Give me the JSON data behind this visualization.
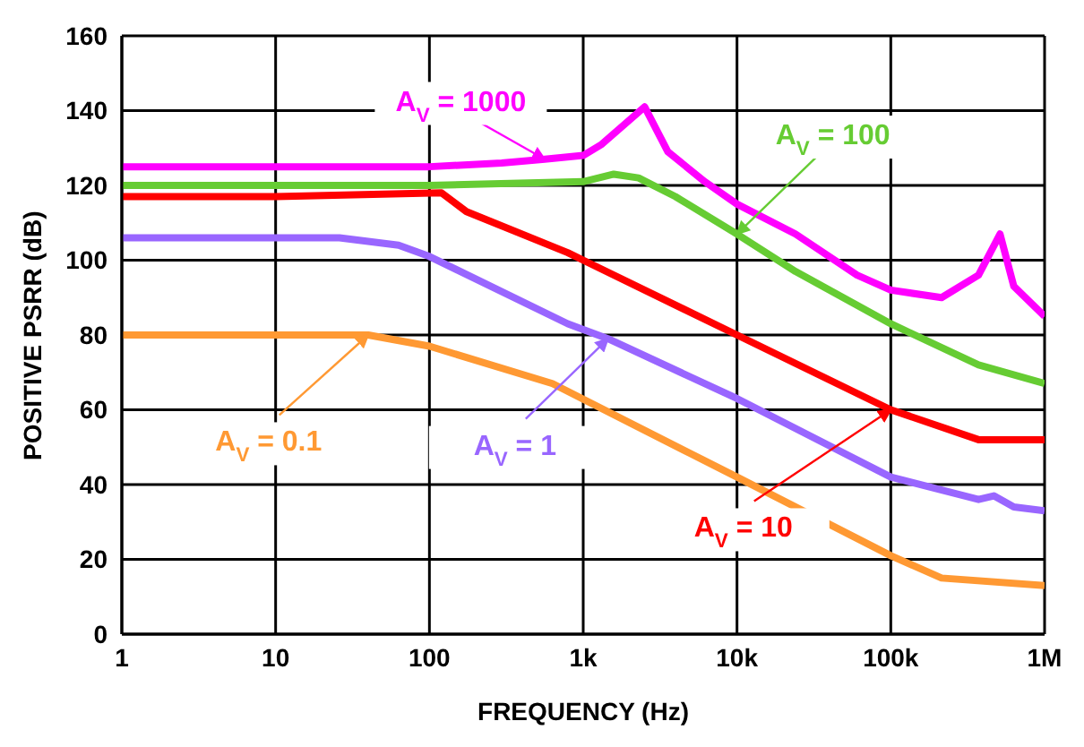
{
  "chart_data": {
    "type": "line",
    "xlabel": "FREQUENCY (Hz)",
    "ylabel": "POSITIVE PSRR (dB)",
    "log": "x",
    "grid": true,
    "marker": "none",
    "line_style": "solid",
    "xlim": [
      1,
      1000000
    ],
    "xticks": [
      1,
      10,
      100,
      {
        "value": 1000,
        "label": "1k"
      },
      {
        "value": 10000,
        "label": "10k"
      },
      {
        "value": 100000,
        "label": "100k"
      },
      {
        "value": 1000000,
        "label": "1M"
      }
    ],
    "ylim": [
      0,
      160
    ],
    "yticks": [
      0,
      20,
      40,
      60,
      80,
      100,
      120,
      140,
      160
    ],
    "series": [
      {
        "name": "A$_{V}$ = 1000",
        "color": "#ff00ff",
        "x": [
          1,
          10,
          100,
          295,
          562,
          1000,
          1320,
          2510,
          3550,
          6170,
          10000,
          24000,
          60300,
          100000,
          214000,
          372000,
          513000,
          631000,
          1000000
        ],
        "values": [
          125,
          125,
          125,
          126,
          127,
          128,
          131,
          141,
          129,
          121,
          115,
          107,
          96,
          92,
          90,
          96,
          107,
          93,
          85
        ]
      },
      {
        "name": "A$_{V}$ = 100",
        "color": "#66cc33",
        "x": [
          1,
          10,
          100,
          1000,
          1580,
          2290,
          3980,
          10000,
          24000,
          100000,
          372000,
          1000000
        ],
        "values": [
          120,
          120,
          120,
          121,
          123,
          122,
          117,
          107,
          97,
          83,
          72,
          67
        ]
      },
      {
        "name": "A$_{V}$ = 10",
        "color": "#ff0000",
        "x": [
          1,
          10,
          120,
          174,
          794,
          1000,
          10000,
          100000,
          372000,
          1000000
        ],
        "values": [
          117,
          117,
          118,
          113,
          102,
          100,
          80,
          60,
          52,
          52
        ]
      },
      {
        "name": "A$_{V}$ = 1",
        "color": "#9966ff",
        "x": [
          1,
          10,
          26,
          63,
          100,
          794,
          1450,
          10000,
          100000,
          372000,
          468000,
          631000,
          1000000
        ],
        "values": [
          106,
          106,
          106,
          104,
          101,
          83,
          79,
          63,
          42,
          36,
          37,
          34,
          33
        ]
      },
      {
        "name": "A$_{V}$ = 0.1",
        "color": "#ff9933",
        "x": [
          1,
          10,
          40,
          100,
          631,
          10000,
          100000,
          214000,
          1000000
        ],
        "values": [
          80,
          80,
          80,
          77,
          67,
          42,
          21,
          15,
          13
        ]
      }
    ]
  }
}
